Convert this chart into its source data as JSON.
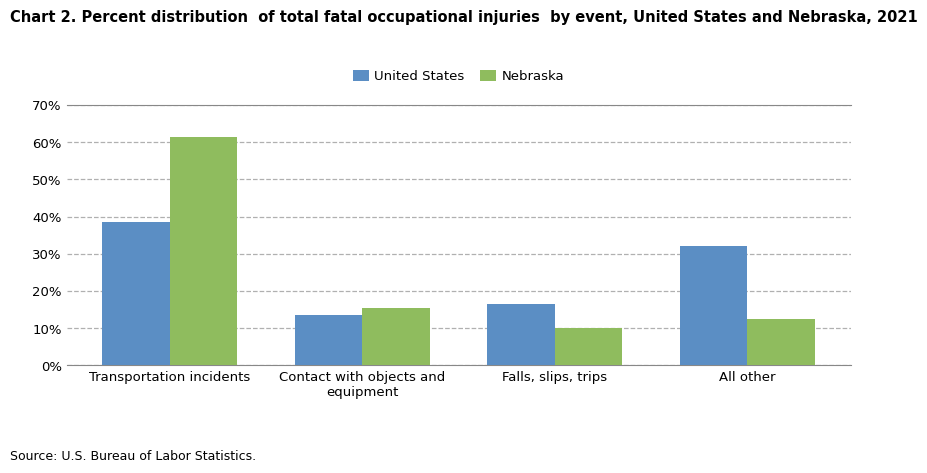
{
  "title": "Chart 2. Percent distribution  of total fatal occupational injuries  by event, United States and Nebraska, 2021",
  "categories": [
    "Transportation incidents",
    "Contact with objects and\nequipment",
    "Falls, slips, trips",
    "All other"
  ],
  "us_values": [
    38.5,
    13.5,
    16.5,
    32.0
  ],
  "ne_values": [
    61.5,
    15.5,
    10.0,
    12.5
  ],
  "us_color": "#5b8ec4",
  "ne_color": "#8fbc5e",
  "us_label": "United States",
  "ne_label": "Nebraska",
  "ylim": [
    0,
    70
  ],
  "yticks": [
    0,
    10,
    20,
    30,
    40,
    50,
    60,
    70
  ],
  "bar_width": 0.35,
  "source": "Source: U.S. Bureau of Labor Statistics.",
  "grid_color": "#b0b0b0",
  "grid_linestyle": "--",
  "background_color": "#ffffff",
  "title_fontsize": 10.5,
  "legend_fontsize": 9.5,
  "tick_fontsize": 9.5,
  "source_fontsize": 9
}
